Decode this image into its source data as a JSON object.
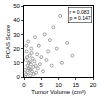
{
  "chart_data": {
    "type": "scatter",
    "x_label": "Tumor Volume (cm³)",
    "y_label": "PCAS Score",
    "x": [
      0.3,
      0.5,
      0.6,
      0.8,
      1.0,
      1.1,
      1.2,
      1.4,
      1.5,
      1.6,
      1.8,
      2.0,
      2.1,
      2.3,
      2.5,
      2.7,
      3.0,
      3.2,
      3.5,
      3.8,
      4.0,
      4.3,
      4.6,
      5.0,
      5.5,
      6.0,
      6.5,
      7.0,
      7.5,
      8.0,
      8.5,
      9.5,
      10.5,
      11.0,
      12.5,
      14.0,
      0.4,
      0.9,
      1.3,
      1.7,
      2.2,
      2.8,
      3.4,
      0.7,
      1.9
    ],
    "values": [
      5,
      12,
      2,
      18,
      8,
      3,
      25,
      10,
      6,
      15,
      1,
      9,
      20,
      4,
      13,
      7,
      11,
      28,
      3,
      16,
      6,
      22,
      9,
      14,
      4,
      30,
      12,
      18,
      26,
      8,
      35,
      20,
      43,
      10,
      24,
      15,
      0,
      14,
      6,
      11,
      17,
      2,
      8,
      22,
      5
    ],
    "color": "#808080",
    "marker": "circle-open",
    "xlim": [
      0,
      20
    ],
    "xticks": [
      0,
      5,
      10,
      15,
      20
    ],
    "ylim": [
      0,
      50
    ],
    "yticks": [
      0,
      10,
      20,
      30,
      40,
      50
    ],
    "grid": false,
    "annotations": [
      "r = 0.083",
      "p = 0.147"
    ]
  }
}
